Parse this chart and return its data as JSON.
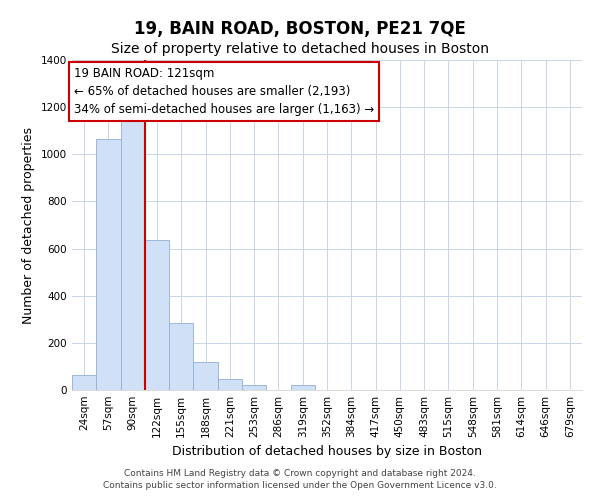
{
  "title": "19, BAIN ROAD, BOSTON, PE21 7QE",
  "subtitle": "Size of property relative to detached houses in Boston",
  "xlabel": "Distribution of detached houses by size in Boston",
  "ylabel": "Number of detached properties",
  "bar_labels": [
    "24sqm",
    "57sqm",
    "90sqm",
    "122sqm",
    "155sqm",
    "188sqm",
    "221sqm",
    "253sqm",
    "286sqm",
    "319sqm",
    "352sqm",
    "384sqm",
    "417sqm",
    "450sqm",
    "483sqm",
    "515sqm",
    "548sqm",
    "581sqm",
    "614sqm",
    "646sqm",
    "679sqm"
  ],
  "bar_values": [
    65,
    1065,
    1155,
    635,
    285,
    120,
    47,
    20,
    0,
    20,
    0,
    0,
    0,
    0,
    0,
    0,
    0,
    0,
    0,
    0,
    0
  ],
  "bar_color": "#cfe0f7",
  "bar_edge_color": "#91afd4",
  "vline_x_index": 2.5,
  "vline_color": "#cc0000",
  "ylim": [
    0,
    1400
  ],
  "yticks": [
    0,
    200,
    400,
    600,
    800,
    1000,
    1200,
    1400
  ],
  "annotation_line1": "19 BAIN ROAD: 121sqm",
  "annotation_line2": "← 65% of detached houses are smaller (2,193)",
  "annotation_line3": "34% of semi-detached houses are larger (1,163) →",
  "footer_text": "Contains HM Land Registry data © Crown copyright and database right 2024.\nContains public sector information licensed under the Open Government Licence v3.0.",
  "grid_color": "#c8d4e8",
  "background_color": "#ffffff",
  "title_fontsize": 12,
  "subtitle_fontsize": 10,
  "axis_label_fontsize": 9,
  "tick_fontsize": 7.5,
  "annotation_fontsize": 8.5,
  "footer_fontsize": 6.5
}
